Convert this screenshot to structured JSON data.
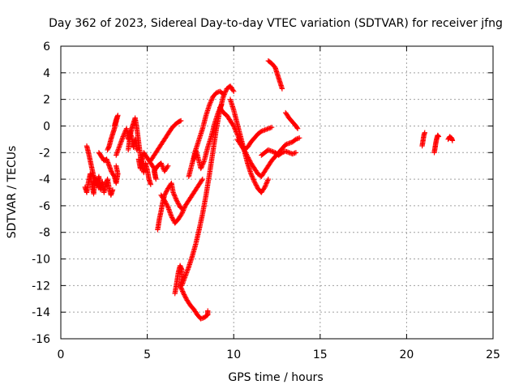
{
  "chart_data": {
    "type": "scatter",
    "title": "Day 362 of 2023, Sidereal Day-to-day VTEC variation (SDTVAR) for receiver jfng",
    "xlabel": "GPS time / hours",
    "ylabel": "SDTVAR / TECUs",
    "xlim": [
      0,
      25
    ],
    "ylim": [
      -16,
      6
    ],
    "xticks": [
      0,
      5,
      10,
      15,
      20,
      25
    ],
    "yticks": [
      -16,
      -14,
      -12,
      -10,
      -8,
      -6,
      -4,
      -2,
      0,
      2,
      4,
      6
    ],
    "grid": true,
    "marker": "+",
    "color": "#ff0000",
    "series": [
      {
        "name": "SDTVAR",
        "segments": [
          [
            [
              1.4,
              -4.6
            ],
            [
              1.5,
              -5.0
            ],
            [
              1.6,
              -4.2
            ],
            [
              1.7,
              -3.6
            ],
            [
              1.8,
              -4.4
            ],
            [
              1.9,
              -5.1
            ],
            [
              2.0,
              -4.0
            ],
            [
              2.1,
              -4.5
            ],
            [
              2.2,
              -3.8
            ],
            [
              2.3,
              -4.8
            ],
            [
              2.4,
              -4.2
            ],
            [
              2.5,
              -5.0
            ],
            [
              2.6,
              -4.4
            ],
            [
              2.7,
              -4.0
            ],
            [
              2.8,
              -4.7
            ],
            [
              2.9,
              -5.2
            ],
            [
              3.0,
              -4.8
            ]
          ],
          [
            [
              1.5,
              -1.5
            ],
            [
              1.6,
              -2.0
            ],
            [
              1.7,
              -2.6
            ],
            [
              1.8,
              -3.2
            ],
            [
              1.9,
              -3.8
            ],
            [
              2.0,
              -4.0
            ],
            [
              2.1,
              -4.3
            ],
            [
              2.2,
              -4.6
            ]
          ],
          [
            [
              2.2,
              -2.0
            ],
            [
              2.35,
              -2.3
            ],
            [
              2.5,
              -2.6
            ],
            [
              2.65,
              -2.5
            ],
            [
              2.8,
              -3.0
            ],
            [
              2.95,
              -3.5
            ],
            [
              3.1,
              -3.8
            ],
            [
              3.2,
              -4.3
            ],
            [
              3.3,
              -3.6
            ],
            [
              3.2,
              -3.0
            ]
          ],
          [
            [
              2.7,
              -1.8
            ],
            [
              2.8,
              -1.5
            ],
            [
              2.9,
              -1.0
            ],
            [
              3.0,
              -0.6
            ],
            [
              3.1,
              -0.2
            ],
            [
              3.2,
              0.3
            ],
            [
              3.3,
              0.8
            ],
            [
              3.2,
              0.5
            ],
            [
              3.1,
              0.0
            ]
          ],
          [
            [
              3.2,
              -2.2
            ],
            [
              3.4,
              -1.5
            ],
            [
              3.6,
              -0.8
            ],
            [
              3.8,
              -0.2
            ],
            [
              3.9,
              -1.0
            ],
            [
              4.0,
              -0.4
            ],
            [
              4.1,
              -0.9
            ],
            [
              4.2,
              -1.6
            ],
            [
              4.3,
              -1.0
            ],
            [
              4.4,
              -1.8
            ]
          ],
          [
            [
              3.9,
              -1.8
            ],
            [
              4.0,
              -0.8
            ],
            [
              4.1,
              -0.2
            ],
            [
              4.2,
              0.2
            ],
            [
              4.3,
              0.6
            ],
            [
              4.4,
              -0.2
            ],
            [
              4.5,
              -1.2
            ],
            [
              4.6,
              -2.2
            ],
            [
              4.7,
              -3.0
            ],
            [
              4.8,
              -3.5
            ],
            [
              4.9,
              -2.8
            ],
            [
              5.0,
              -3.3
            ],
            [
              5.1,
              -4.0
            ],
            [
              5.2,
              -4.4
            ]
          ],
          [
            [
              4.5,
              -2.5
            ],
            [
              4.6,
              -3.2
            ],
            [
              4.7,
              -2.6
            ],
            [
              4.8,
              -2.0
            ],
            [
              5.0,
              -2.4
            ],
            [
              5.2,
              -2.8
            ],
            [
              5.4,
              -3.2
            ],
            [
              5.5,
              -4.0
            ],
            [
              5.4,
              -3.4
            ],
            [
              5.6,
              -3.0
            ],
            [
              5.8,
              -2.8
            ],
            [
              6.0,
              -3.4
            ],
            [
              6.2,
              -3.0
            ]
          ],
          [
            [
              5.2,
              -2.6
            ],
            [
              5.4,
              -2.2
            ],
            [
              5.6,
              -1.8
            ],
            [
              5.8,
              -1.4
            ],
            [
              6.0,
              -1.0
            ],
            [
              6.2,
              -0.6
            ],
            [
              6.4,
              -0.2
            ],
            [
              6.6,
              0.1
            ],
            [
              6.8,
              0.3
            ],
            [
              6.95,
              0.4
            ]
          ],
          [
            [
              5.6,
              -7.8
            ],
            [
              5.7,
              -7.0
            ],
            [
              5.8,
              -6.4
            ],
            [
              5.9,
              -5.7
            ],
            [
              6.0,
              -5.2
            ],
            [
              6.2,
              -4.7
            ],
            [
              6.4,
              -4.3
            ],
            [
              6.5,
              -5.0
            ],
            [
              6.7,
              -5.6
            ],
            [
              6.9,
              -6.1
            ],
            [
              7.0,
              -6.2
            ]
          ],
          [
            [
              5.8,
              -5.2
            ],
            [
              6.0,
              -5.6
            ],
            [
              6.2,
              -6.1
            ],
            [
              6.4,
              -6.8
            ],
            [
              6.6,
              -7.3
            ],
            [
              6.8,
              -7.0
            ],
            [
              7.0,
              -6.6
            ],
            [
              7.2,
              -6.0
            ],
            [
              7.4,
              -5.6
            ],
            [
              7.6,
              -5.2
            ],
            [
              7.8,
              -4.8
            ],
            [
              8.0,
              -4.4
            ],
            [
              8.2,
              -4.0
            ]
          ],
          [
            [
              6.6,
              -12.6
            ],
            [
              6.7,
              -11.8
            ],
            [
              6.8,
              -11.0
            ],
            [
              6.9,
              -10.5
            ],
            [
              7.0,
              -10.8
            ],
            [
              7.0,
              -11.6
            ],
            [
              6.9,
              -12.1
            ]
          ],
          [
            [
              6.9,
              -12.0
            ],
            [
              7.1,
              -12.6
            ],
            [
              7.3,
              -13.1
            ],
            [
              7.5,
              -13.5
            ],
            [
              7.7,
              -13.8
            ],
            [
              7.9,
              -14.2
            ],
            [
              8.1,
              -14.5
            ],
            [
              8.3,
              -14.4
            ],
            [
              8.5,
              -14.2
            ],
            [
              8.5,
              -13.9
            ]
          ],
          [
            [
              7.0,
              -12.0
            ],
            [
              7.2,
              -11.3
            ],
            [
              7.4,
              -10.6
            ],
            [
              7.6,
              -9.8
            ],
            [
              7.8,
              -8.9
            ],
            [
              8.0,
              -7.8
            ],
            [
              8.2,
              -6.6
            ],
            [
              8.4,
              -5.2
            ],
            [
              8.6,
              -3.6
            ],
            [
              8.8,
              -1.9
            ],
            [
              9.0,
              -0.2
            ],
            [
              9.2,
              1.2
            ],
            [
              9.4,
              2.2
            ],
            [
              9.6,
              2.8
            ],
            [
              9.8,
              3.0
            ],
            [
              10.0,
              2.6
            ]
          ],
          [
            [
              7.4,
              -3.8
            ],
            [
              7.6,
              -2.8
            ],
            [
              7.8,
              -1.8
            ],
            [
              8.0,
              -1.0
            ],
            [
              8.2,
              -0.2
            ],
            [
              8.4,
              0.8
            ],
            [
              8.6,
              1.6
            ],
            [
              8.8,
              2.2
            ],
            [
              9.0,
              2.5
            ],
            [
              9.2,
              2.6
            ],
            [
              9.4,
              2.4
            ]
          ],
          [
            [
              7.7,
              -2.5
            ],
            [
              7.8,
              -1.8
            ],
            [
              7.9,
              -2.2
            ],
            [
              8.1,
              -3.2
            ],
            [
              8.3,
              -2.6
            ],
            [
              8.5,
              -1.6
            ],
            [
              8.7,
              -0.8
            ],
            [
              8.9,
              0.2
            ],
            [
              9.1,
              1.0
            ],
            [
              9.3,
              1.6
            ]
          ],
          [
            [
              9.2,
              1.4
            ],
            [
              9.4,
              1.0
            ],
            [
              9.6,
              0.8
            ],
            [
              9.8,
              0.4
            ],
            [
              10.0,
              0.0
            ],
            [
              10.2,
              -0.6
            ],
            [
              10.4,
              -1.2
            ],
            [
              10.6,
              -1.8
            ],
            [
              10.8,
              -2.3
            ],
            [
              11.0,
              -2.8
            ],
            [
              11.2,
              -3.2
            ],
            [
              11.4,
              -3.6
            ],
            [
              11.6,
              -3.8
            ],
            [
              11.8,
              -3.4
            ],
            [
              12.0,
              -3.0
            ],
            [
              12.2,
              -2.6
            ],
            [
              12.4,
              -2.3
            ],
            [
              12.6,
              -2.0
            ],
            [
              12.8,
              -1.7
            ],
            [
              13.0,
              -1.4
            ],
            [
              13.2,
              -1.3
            ],
            [
              13.4,
              -1.2
            ],
            [
              13.6,
              -1.0
            ],
            [
              13.8,
              -0.9
            ]
          ],
          [
            [
              9.8,
              2.0
            ],
            [
              10.0,
              1.2
            ],
            [
              10.2,
              0.2
            ],
            [
              10.4,
              -0.8
            ],
            [
              10.6,
              -1.8
            ],
            [
              10.8,
              -2.8
            ],
            [
              11.0,
              -3.6
            ],
            [
              11.2,
              -4.2
            ],
            [
              11.4,
              -4.7
            ],
            [
              11.6,
              -5.0
            ],
            [
              11.8,
              -4.6
            ],
            [
              12.0,
              -4.0
            ]
          ],
          [
            [
              10.2,
              -1.0
            ],
            [
              10.4,
              -1.4
            ],
            [
              10.6,
              -1.8
            ],
            [
              10.8,
              -1.6
            ],
            [
              11.0,
              -1.2
            ],
            [
              11.2,
              -0.9
            ],
            [
              11.4,
              -0.6
            ],
            [
              11.6,
              -0.4
            ],
            [
              11.8,
              -0.3
            ],
            [
              12.0,
              -0.2
            ],
            [
              12.2,
              -0.1
            ]
          ],
          [
            [
              11.6,
              -2.2
            ],
            [
              11.8,
              -2.0
            ],
            [
              12.0,
              -1.8
            ],
            [
              12.2,
              -1.9
            ],
            [
              12.4,
              -2.0
            ],
            [
              12.6,
              -2.2
            ],
            [
              12.8,
              -2.0
            ],
            [
              13.0,
              -1.9
            ],
            [
              13.2,
              -2.0
            ],
            [
              13.4,
              -2.1
            ],
            [
              13.6,
              -2.0
            ]
          ],
          [
            [
              12.0,
              4.9
            ],
            [
              12.2,
              4.7
            ],
            [
              12.4,
              4.4
            ],
            [
              12.5,
              4.0
            ],
            [
              12.6,
              3.6
            ],
            [
              12.7,
              3.2
            ],
            [
              12.8,
              2.8
            ]
          ],
          [
            [
              13.0,
              1.0
            ],
            [
              13.2,
              0.6
            ],
            [
              13.4,
              0.3
            ],
            [
              13.6,
              0.0
            ],
            [
              13.7,
              -0.2
            ]
          ],
          [
            [
              20.9,
              -1.5
            ],
            [
              20.95,
              -1.1
            ],
            [
              21.0,
              -0.7
            ],
            [
              21.05,
              -0.5
            ]
          ],
          [
            [
              21.6,
              -2.0
            ],
            [
              21.65,
              -1.6
            ],
            [
              21.7,
              -1.2
            ],
            [
              21.75,
              -0.9
            ],
            [
              21.8,
              -0.7
            ],
            [
              21.85,
              -0.8
            ]
          ],
          [
            [
              22.4,
              -1.0
            ],
            [
              22.5,
              -0.8
            ],
            [
              22.6,
              -0.9
            ],
            [
              22.65,
              -1.1
            ]
          ]
        ]
      }
    ]
  }
}
